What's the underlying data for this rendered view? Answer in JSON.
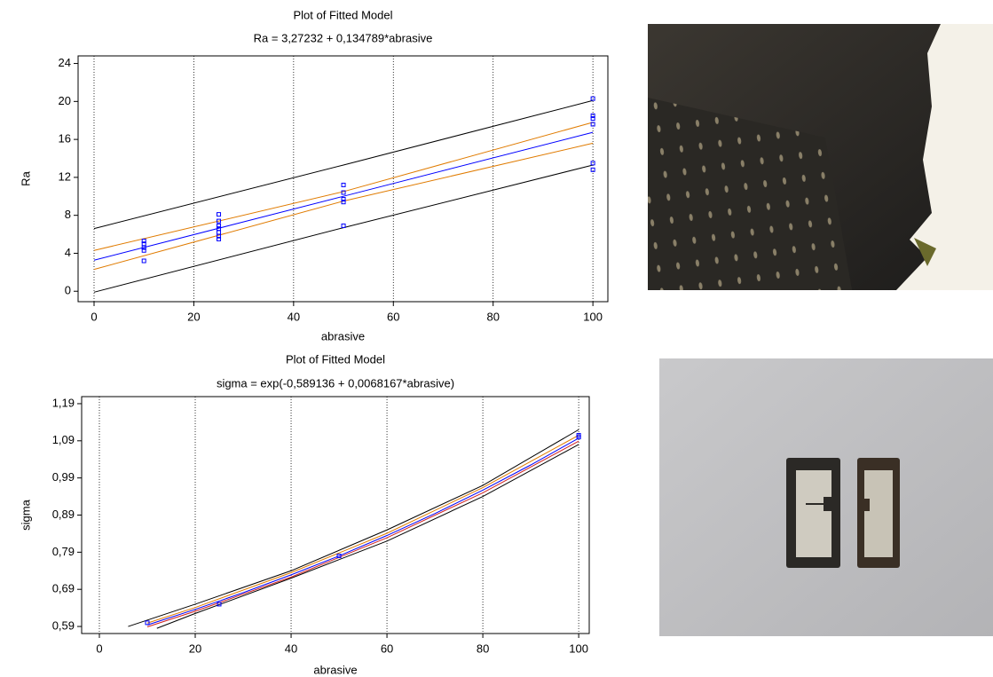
{
  "chart_data": [
    {
      "type": "scatter",
      "title": "Plot of Fitted Model",
      "subtitle": "Ra = 3,27232 + 0,134789*abrasive",
      "xlabel": "abrasive",
      "ylabel": "Ra",
      "grid": "x",
      "xlim": [
        -3.2,
        103
      ],
      "ylim": [
        -1.1,
        24.8
      ],
      "xticks": [
        0,
        20,
        40,
        60,
        80,
        100
      ],
      "yticks": [
        0,
        4,
        8,
        12,
        16,
        20,
        24
      ],
      "series": [
        {
          "type": "line",
          "color": "#000000",
          "x": [
            0,
            50,
            100
          ],
          "values": [
            6.6,
            13.3,
            20.1
          ]
        },
        {
          "type": "line",
          "color": "#000000",
          "x": [
            0,
            50,
            100
          ],
          "values": [
            -0.1,
            6.7,
            13.3
          ]
        },
        {
          "type": "line",
          "color": "#e07b00",
          "x": [
            0,
            50,
            100
          ],
          "values": [
            4.3,
            10.5,
            17.8
          ]
        },
        {
          "type": "line",
          "color": "#e07b00",
          "x": [
            0,
            50,
            100
          ],
          "values": [
            2.3,
            9.5,
            15.6
          ]
        },
        {
          "type": "line",
          "color": "#0000ff",
          "x": [
            0,
            50,
            100
          ],
          "values": [
            3.27,
            10.01,
            16.75
          ]
        },
        {
          "type": "scatter",
          "color": "#0000ff",
          "x": [
            10,
            10,
            10,
            10,
            10,
            25,
            25,
            25,
            25,
            25,
            25,
            25,
            50,
            50,
            50,
            50,
            50,
            100,
            100,
            100,
            100,
            100,
            100
          ],
          "values": [
            5.3,
            5.0,
            4.6,
            4.3,
            3.2,
            8.1,
            7.4,
            6.9,
            6.6,
            6.2,
            5.8,
            5.5,
            11.2,
            10.4,
            9.7,
            9.4,
            6.9,
            20.3,
            18.5,
            18.2,
            17.6,
            13.5,
            12.8
          ]
        }
      ]
    },
    {
      "type": "scatter",
      "title": "Plot of Fitted Model",
      "subtitle": "sigma = exp(-0,589136 + 0,0068167*abrasive)",
      "xlabel": "abrasive",
      "ylabel": "sigma",
      "grid": "x",
      "xlim": [
        -3.7,
        102.2
      ],
      "ylim": [
        0.571,
        1.209
      ],
      "xticks": [
        0,
        20,
        40,
        60,
        80,
        100
      ],
      "yticks": [
        {
          "value": 0.59,
          "label": "0,59"
        },
        {
          "value": 0.69,
          "label": "0,69"
        },
        {
          "value": 0.79,
          "label": "0,79"
        },
        {
          "value": 0.89,
          "label": "0,89"
        },
        {
          "value": 0.99,
          "label": "0,99"
        },
        {
          "value": 1.09,
          "label": "1,09"
        },
        {
          "value": 1.19,
          "label": "1,19"
        }
      ],
      "series": [
        {
          "type": "line",
          "color": "#000000",
          "x": [
            6,
            20,
            40,
            60,
            80,
            100
          ],
          "values": [
            0.59,
            0.65,
            0.74,
            0.85,
            0.97,
            1.12
          ]
        },
        {
          "type": "line",
          "color": "#000000",
          "x": [
            12,
            20,
            40,
            60,
            80,
            100
          ],
          "values": [
            0.585,
            0.625,
            0.72,
            0.82,
            0.94,
            1.08
          ]
        },
        {
          "type": "line",
          "color": "#e07b00",
          "x": [
            10,
            20,
            40,
            60,
            80,
            100
          ],
          "values": [
            0.599,
            0.641,
            0.735,
            0.841,
            0.964,
            1.105
          ]
        },
        {
          "type": "line",
          "color": "#d02020",
          "x": [
            10,
            20,
            40,
            60,
            80,
            100
          ],
          "values": [
            0.589,
            0.631,
            0.723,
            0.829,
            0.95,
            1.089
          ]
        },
        {
          "type": "line",
          "color": "#0000ff",
          "x": [
            10,
            20,
            30,
            40,
            50,
            60,
            70,
            80,
            90,
            100
          ],
          "values": [
            0.594,
            0.636,
            0.681,
            0.729,
            0.78,
            0.835,
            0.894,
            0.957,
            1.025,
            1.097
          ]
        },
        {
          "type": "scatter",
          "color": "#0000ff",
          "x": [
            10,
            25,
            50,
            100,
            100
          ],
          "values": [
            0.6,
            0.65,
            0.78,
            1.1,
            1.105
          ]
        }
      ]
    }
  ]
}
